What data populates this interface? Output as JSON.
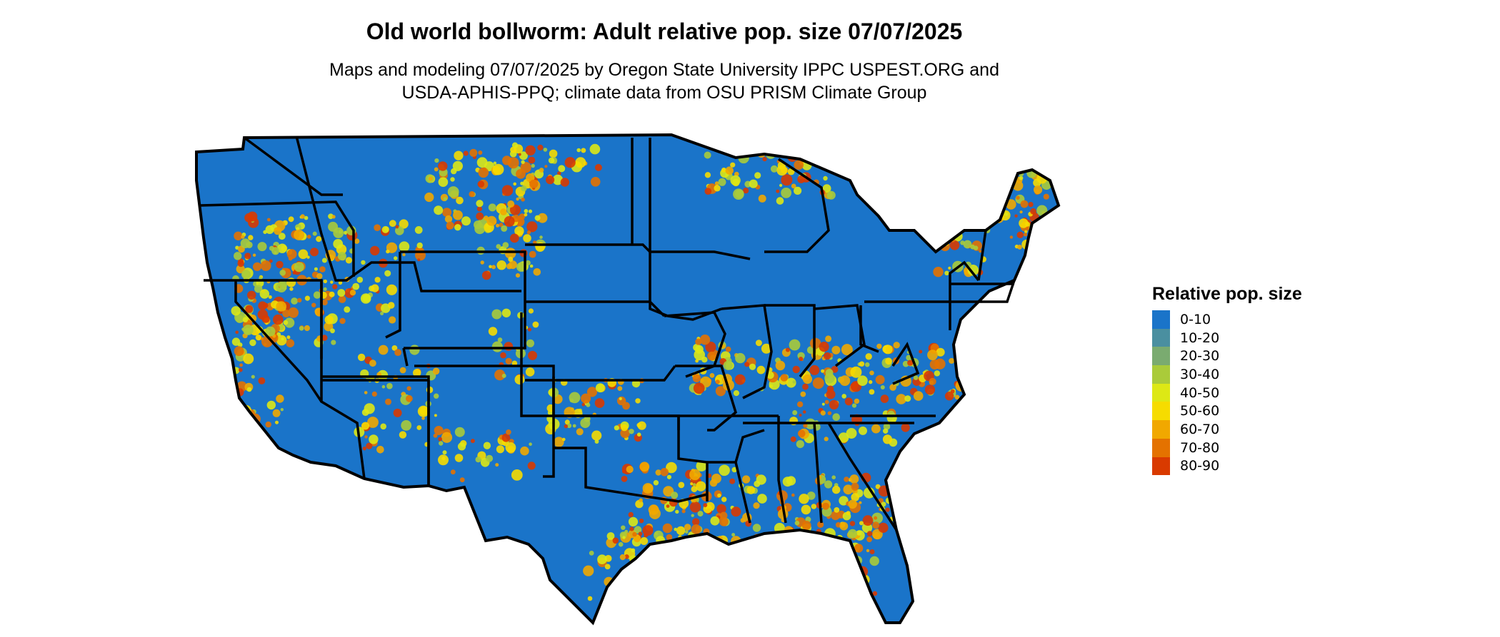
{
  "title": "Old world bollworm: Adult relative pop. size 07/07/2025",
  "subtitle_line1": "Maps and modeling 07/07/2025 by Oregon State University IPPC USPEST.ORG and",
  "subtitle_line2": "USDA-APHIS-PPQ; climate data from OSU PRISM Climate Group",
  "map": {
    "region": "Contiguous United States",
    "base_color": "#1a74c9",
    "border_color": "#000000",
    "hotspot_color": "#e06a00"
  },
  "legend": {
    "title": "Relative pop. size",
    "items": [
      {
        "label": "0-10",
        "color": "#1a74c9"
      },
      {
        "label": "10-20",
        "color": "#4a8fa0"
      },
      {
        "label": "20-30",
        "color": "#7aab70"
      },
      {
        "label": "30-40",
        "color": "#aacb3a"
      },
      {
        "label": "40-50",
        "color": "#dde815"
      },
      {
        "label": "50-60",
        "color": "#f6dc00"
      },
      {
        "label": "60-70",
        "color": "#f1a800"
      },
      {
        "label": "70-80",
        "color": "#e47200"
      },
      {
        "label": "80-90",
        "color": "#d93a00"
      }
    ]
  }
}
